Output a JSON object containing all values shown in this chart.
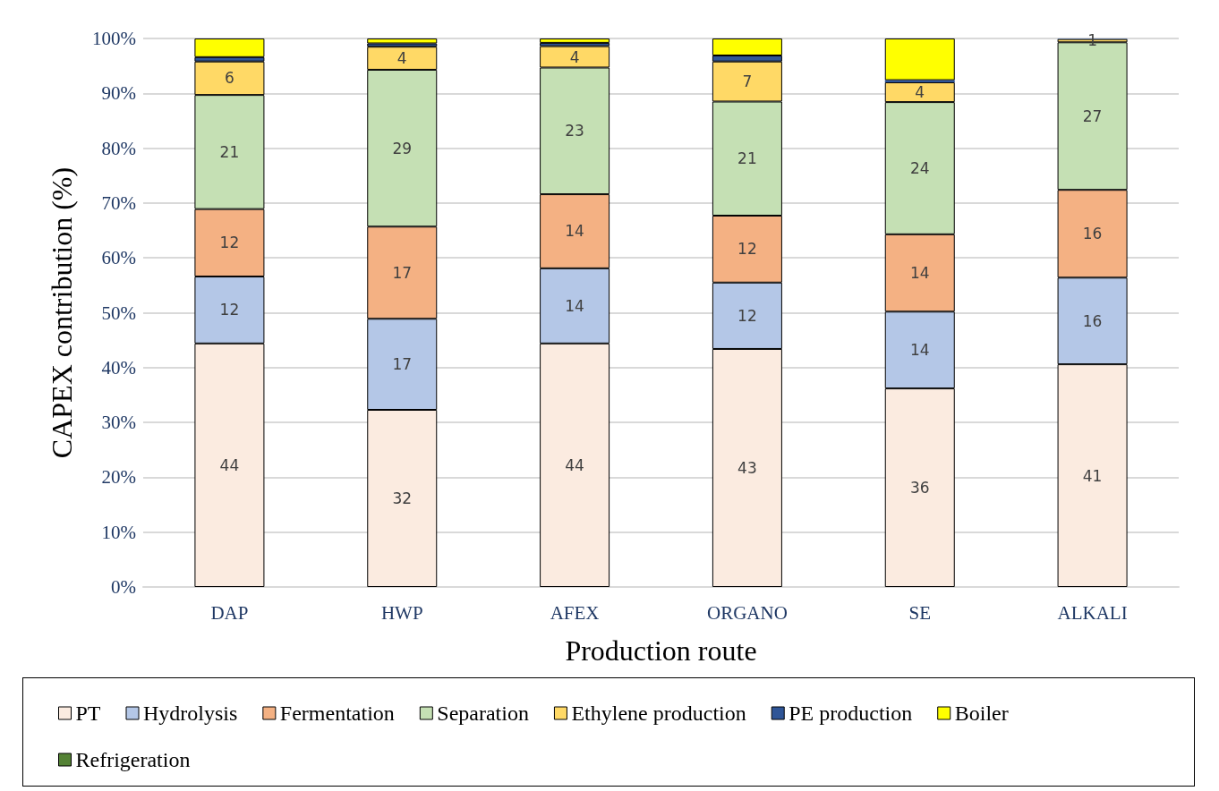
{
  "chart_data": {
    "type": "bar",
    "stacked": true,
    "xlabel": "Production route",
    "ylabel": "CAPEX contribution (%)",
    "categories": [
      "DAP",
      "HWP",
      "AFEX",
      "ORGANO",
      "SE",
      "ALKALI"
    ],
    "ylim": [
      0,
      100
    ],
    "yticks": [
      {
        "value": 0,
        "label": "0%"
      },
      {
        "value": 10,
        "label": "10%"
      },
      {
        "value": 20,
        "label": "20%"
      },
      {
        "value": 30,
        "label": "30%"
      },
      {
        "value": 40,
        "label": "40%"
      },
      {
        "value": 50,
        "label": "50%"
      },
      {
        "value": 60,
        "label": "60%"
      },
      {
        "value": 70,
        "label": "70%"
      },
      {
        "value": 80,
        "label": "80%"
      },
      {
        "value": 90,
        "label": "90%"
      },
      {
        "value": 100,
        "label": "100%"
      }
    ],
    "grid": "y",
    "legend": "bottom",
    "series": [
      {
        "name": "PT",
        "color": "#fbebe0",
        "values": [
          44.4,
          32.3,
          44.4,
          43.4,
          36.2,
          40.6
        ],
        "value_labels": [
          "44",
          "32",
          "44",
          "43",
          "36",
          "41"
        ]
      },
      {
        "name": "Hydrolysis",
        "color": "#b4c7e7",
        "values": [
          12.2,
          16.6,
          13.7,
          12.1,
          14.0,
          15.8
        ],
        "value_labels": [
          "12",
          "17",
          "14",
          "12",
          "14",
          "16"
        ]
      },
      {
        "name": "Fermentation",
        "color": "#f4b183",
        "values": [
          12.3,
          16.8,
          13.5,
          12.2,
          14.1,
          16.0
        ],
        "value_labels": [
          "12",
          "17",
          "14",
          "12",
          "14",
          "16"
        ]
      },
      {
        "name": "Separation",
        "color": "#c5e0b4",
        "values": [
          20.8,
          28.6,
          23.1,
          20.8,
          24.1,
          26.9
        ],
        "value_labels": [
          "21",
          "29",
          "23",
          "21",
          "24",
          "27"
        ]
      },
      {
        "name": "Ethylene production",
        "color": "#ffd966",
        "values": [
          6.1,
          4.2,
          3.9,
          7.3,
          3.6,
          0.6
        ],
        "value_labels": [
          "6",
          "4",
          "4",
          "7",
          "4",
          "1"
        ]
      },
      {
        "name": "PE production",
        "color": "#2f5597",
        "values": [
          0.8,
          0.6,
          0.6,
          1.1,
          0.4,
          0.1
        ]
      },
      {
        "name": "Boiler",
        "color": "#ffff00",
        "values": [
          3.4,
          0.9,
          0.8,
          3.1,
          7.6,
          0
        ]
      },
      {
        "name": "Refrigeration",
        "color": "#548235",
        "values": [
          0,
          0,
          0,
          0,
          0,
          0
        ]
      }
    ]
  }
}
